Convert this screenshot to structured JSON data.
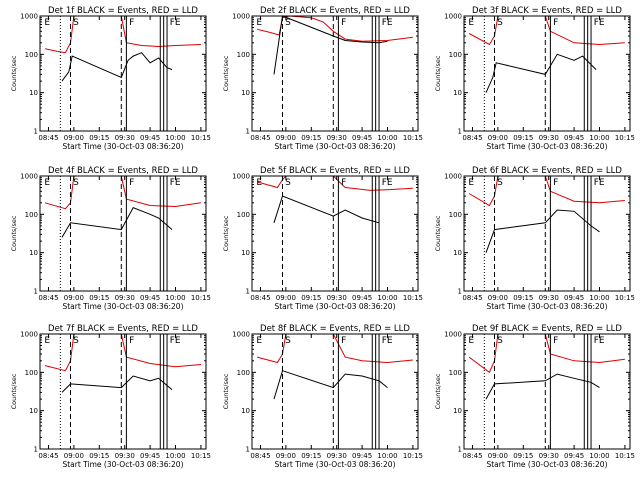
{
  "panels_meta": {
    "yticks": [
      "1",
      "10",
      "100",
      "1000"
    ],
    "xticks": [
      "08:45",
      "09:00",
      "09:15",
      "09:30",
      "09:45",
      "10:00",
      "10:15"
    ]
  },
  "chart_data": [
    {
      "type": "line",
      "title": "Det 1f BLACK = Events, RED = LLD",
      "xlabel": "Start Time (30-Oct-03 08:36:20)",
      "ylabel": "Counts/sec",
      "yscale": "log",
      "ylim": [
        1,
        1000
      ],
      "xlim": [
        "08:40",
        "10:18"
      ],
      "marker_labels": [
        "E",
        "S",
        "F",
        "FE"
      ],
      "markers": [
        {
          "t": "08:52",
          "style": "dotted"
        },
        {
          "t": "08:58",
          "style": "dashed"
        },
        {
          "t": "09:28",
          "style": "dashed"
        },
        {
          "t": "09:31",
          "style": "solid"
        },
        {
          "t": "09:51",
          "style": "solid"
        },
        {
          "t": "09:53",
          "style": "solid"
        },
        {
          "t": "09:55",
          "style": "solid"
        }
      ],
      "series": [
        {
          "name": "RED",
          "color": "#e00000",
          "x": [
            "08:43",
            "08:50",
            "08:55",
            "08:58",
            "09:00",
            "09:28",
            "09:31",
            "09:40",
            "09:50",
            "10:00",
            "10:15"
          ],
          "y": [
            140,
            120,
            110,
            200,
            1000,
            1000,
            200,
            170,
            160,
            170,
            180
          ]
        },
        {
          "name": "BLACK",
          "color": "#000000",
          "x": [
            "08:53",
            "08:57",
            "08:59",
            "09:28",
            "09:32",
            "09:35",
            "09:40",
            "09:45",
            "09:50",
            "09:55",
            "09:58"
          ],
          "y": [
            20,
            35,
            90,
            25,
            70,
            90,
            110,
            60,
            80,
            45,
            40
          ]
        }
      ]
    },
    {
      "type": "line",
      "title": "Det 2f BLACK = Events, RED = LLD",
      "xlabel": "Start Time (30-Oct-03 08:36:20)",
      "ylabel": "Counts/sec",
      "yscale": "log",
      "ylim": [
        1,
        1000
      ],
      "xlim": [
        "08:40",
        "10:18"
      ],
      "marker_labels": [
        "E",
        "S",
        "F",
        "FE"
      ],
      "markers": [
        {
          "t": "08:58",
          "style": "dashed"
        },
        {
          "t": "09:28",
          "style": "dashed"
        },
        {
          "t": "09:31",
          "style": "solid"
        },
        {
          "t": "09:51",
          "style": "solid"
        },
        {
          "t": "09:53",
          "style": "solid"
        },
        {
          "t": "09:55",
          "style": "solid"
        }
      ],
      "series": [
        {
          "name": "RED",
          "color": "#e00000",
          "x": [
            "08:43",
            "08:50",
            "08:56",
            "08:58",
            "09:02",
            "09:15",
            "09:22",
            "09:28",
            "09:35",
            "09:45",
            "10:00",
            "10:15"
          ],
          "y": [
            450,
            380,
            320,
            900,
            1000,
            900,
            700,
            400,
            250,
            220,
            230,
            280
          ]
        },
        {
          "name": "BLACK",
          "color": "#000000",
          "x": [
            "08:53",
            "08:58",
            "09:28",
            "09:35",
            "09:45",
            "09:55",
            "10:00"
          ],
          "y": [
            30,
            1000,
            300,
            230,
            210,
            200,
            220
          ]
        }
      ]
    },
    {
      "type": "line",
      "title": "Det 3f BLACK = Events, RED = LLD",
      "xlabel": "Start Time (30-Oct-03 08:36:20)",
      "ylabel": "Counts/sec",
      "yscale": "log",
      "ylim": [
        1,
        1000
      ],
      "xlim": [
        "08:40",
        "10:18"
      ],
      "marker_labels": [
        "E",
        "S",
        "F",
        "FE"
      ],
      "markers": [
        {
          "t": "08:52",
          "style": "dotted"
        },
        {
          "t": "08:58",
          "style": "dashed"
        },
        {
          "t": "09:28",
          "style": "dashed"
        },
        {
          "t": "09:31",
          "style": "solid"
        },
        {
          "t": "09:51",
          "style": "solid"
        },
        {
          "t": "09:53",
          "style": "solid"
        },
        {
          "t": "09:55",
          "style": "solid"
        }
      ],
      "series": [
        {
          "name": "RED",
          "color": "#e00000",
          "x": [
            "08:43",
            "08:55",
            "08:58",
            "09:00",
            "09:28",
            "09:31",
            "09:45",
            "10:00",
            "10:15"
          ],
          "y": [
            350,
            180,
            300,
            1000,
            1000,
            400,
            200,
            180,
            200
          ]
        },
        {
          "name": "BLACK",
          "color": "#000000",
          "x": [
            "08:53",
            "08:57",
            "08:59",
            "09:28",
            "09:35",
            "09:45",
            "09:50",
            "09:58"
          ],
          "y": [
            10,
            25,
            60,
            30,
            100,
            70,
            90,
            40
          ]
        }
      ]
    },
    {
      "type": "line",
      "title": "Det 4f BLACK = Events, RED = LLD",
      "xlabel": "Start Time (30-Oct-03 08:36:20)",
      "ylabel": "Counts/sec",
      "yscale": "log",
      "ylim": [
        1,
        1000
      ],
      "xlim": [
        "08:40",
        "10:18"
      ],
      "marker_labels": [
        "E",
        "S",
        "F",
        "FE"
      ],
      "markers": [
        {
          "t": "08:52",
          "style": "dotted"
        },
        {
          "t": "08:58",
          "style": "dashed"
        },
        {
          "t": "09:28",
          "style": "dashed"
        },
        {
          "t": "09:31",
          "style": "solid"
        },
        {
          "t": "09:51",
          "style": "solid"
        },
        {
          "t": "09:53",
          "style": "solid"
        },
        {
          "t": "09:55",
          "style": "solid"
        }
      ],
      "series": [
        {
          "name": "RED",
          "color": "#e00000",
          "x": [
            "08:43",
            "08:55",
            "08:58",
            "09:00",
            "09:28",
            "09:31",
            "09:45",
            "10:00",
            "10:15"
          ],
          "y": [
            200,
            140,
            200,
            1000,
            1000,
            250,
            170,
            160,
            200
          ]
        },
        {
          "name": "BLACK",
          "color": "#000000",
          "x": [
            "08:53",
            "08:58",
            "09:28",
            "09:35",
            "09:45",
            "09:50",
            "09:58"
          ],
          "y": [
            25,
            60,
            40,
            150,
            100,
            80,
            40
          ]
        }
      ]
    },
    {
      "type": "line",
      "title": "Det 5f BLACK = Events, RED = LLD",
      "xlabel": "Start Time (30-Oct-03 08:36:20)",
      "ylabel": "Counts/sec",
      "yscale": "log",
      "ylim": [
        1,
        1000
      ],
      "xlim": [
        "08:40",
        "10:18"
      ],
      "marker_labels": [
        "E",
        "S",
        "F",
        "FE"
      ],
      "markers": [
        {
          "t": "08:58",
          "style": "dashed"
        },
        {
          "t": "09:28",
          "style": "dashed"
        },
        {
          "t": "09:31",
          "style": "solid"
        },
        {
          "t": "09:51",
          "style": "solid"
        },
        {
          "t": "09:53",
          "style": "solid"
        },
        {
          "t": "09:55",
          "style": "solid"
        }
      ],
      "series": [
        {
          "name": "RED",
          "color": "#e00000",
          "x": [
            "08:43",
            "08:55",
            "08:58",
            "09:00",
            "09:28",
            "09:35",
            "09:50",
            "10:05",
            "10:15"
          ],
          "y": [
            700,
            500,
            800,
            1000,
            1000,
            500,
            420,
            450,
            480
          ]
        },
        {
          "name": "BLACK",
          "color": "#000000",
          "x": [
            "08:53",
            "08:58",
            "09:28",
            "09:35",
            "09:45",
            "09:55"
          ],
          "y": [
            60,
            300,
            90,
            130,
            80,
            60
          ]
        }
      ]
    },
    {
      "type": "line",
      "title": "Det 6f BLACK = Events, RED = LLD",
      "xlabel": "Start Time (30-Oct-03 08:36:20)",
      "ylabel": "Counts/sec",
      "yscale": "log",
      "ylim": [
        1,
        1000
      ],
      "xlim": [
        "08:40",
        "10:18"
      ],
      "marker_labels": [
        "E",
        "S",
        "F",
        "FE"
      ],
      "markers": [
        {
          "t": "08:52",
          "style": "dotted"
        },
        {
          "t": "08:58",
          "style": "dashed"
        },
        {
          "t": "09:28",
          "style": "dashed"
        },
        {
          "t": "09:31",
          "style": "solid"
        },
        {
          "t": "09:51",
          "style": "solid"
        },
        {
          "t": "09:53",
          "style": "solid"
        },
        {
          "t": "09:55",
          "style": "solid"
        }
      ],
      "series": [
        {
          "name": "RED",
          "color": "#e00000",
          "x": [
            "08:43",
            "08:55",
            "08:58",
            "09:00",
            "09:28",
            "09:31",
            "09:45",
            "10:00",
            "10:15"
          ],
          "y": [
            350,
            170,
            300,
            1000,
            1000,
            400,
            220,
            200,
            230
          ]
        },
        {
          "name": "BLACK",
          "color": "#000000",
          "x": [
            "08:53",
            "08:58",
            "09:28",
            "09:35",
            "09:45",
            "09:55",
            "10:00"
          ],
          "y": [
            10,
            40,
            60,
            130,
            120,
            50,
            35
          ]
        }
      ]
    },
    {
      "type": "line",
      "title": "Det 7f BLACK = Events, RED = LLD",
      "xlabel": "Start Time (30-Oct-03 08:36:20)",
      "ylabel": "Counts/sec",
      "yscale": "log",
      "ylim": [
        1,
        1000
      ],
      "xlim": [
        "08:40",
        "10:18"
      ],
      "marker_labels": [
        "E",
        "S",
        "F",
        "FE"
      ],
      "markers": [
        {
          "t": "08:52",
          "style": "dotted"
        },
        {
          "t": "08:58",
          "style": "dashed"
        },
        {
          "t": "09:28",
          "style": "dashed"
        },
        {
          "t": "09:31",
          "style": "solid"
        },
        {
          "t": "09:51",
          "style": "solid"
        },
        {
          "t": "09:53",
          "style": "solid"
        },
        {
          "t": "09:55",
          "style": "solid"
        }
      ],
      "series": [
        {
          "name": "RED",
          "color": "#e00000",
          "x": [
            "08:43",
            "08:55",
            "08:58",
            "09:00",
            "09:28",
            "09:31",
            "09:45",
            "10:00",
            "10:15"
          ],
          "y": [
            150,
            110,
            200,
            1000,
            1000,
            250,
            170,
            140,
            160
          ]
        },
        {
          "name": "BLACK",
          "color": "#000000",
          "x": [
            "08:53",
            "08:58",
            "09:28",
            "09:35",
            "09:45",
            "09:50",
            "09:58"
          ],
          "y": [
            30,
            50,
            40,
            80,
            60,
            70,
            35
          ]
        }
      ]
    },
    {
      "type": "line",
      "title": "Det 8f BLACK = Events, RED = LLD",
      "xlabel": "Start Time (30-Oct-03 08:36:20)",
      "ylabel": "Counts/sec",
      "yscale": "log",
      "ylim": [
        1,
        1000
      ],
      "xlim": [
        "08:40",
        "10:18"
      ],
      "marker_labels": [
        "E",
        "S",
        "F",
        "FE"
      ],
      "markers": [
        {
          "t": "08:58",
          "style": "dashed"
        },
        {
          "t": "09:28",
          "style": "dashed"
        },
        {
          "t": "09:31",
          "style": "solid"
        },
        {
          "t": "09:51",
          "style": "solid"
        },
        {
          "t": "09:53",
          "style": "solid"
        },
        {
          "t": "09:55",
          "style": "solid"
        }
      ],
      "series": [
        {
          "name": "RED",
          "color": "#e00000",
          "x": [
            "08:43",
            "08:55",
            "08:58",
            "09:00",
            "09:28",
            "09:35",
            "09:45",
            "10:00",
            "10:15"
          ],
          "y": [
            250,
            180,
            300,
            1000,
            1000,
            250,
            200,
            180,
            210
          ]
        },
        {
          "name": "BLACK",
          "color": "#000000",
          "x": [
            "08:53",
            "08:58",
            "09:28",
            "09:35",
            "09:45",
            "09:55",
            "10:00"
          ],
          "y": [
            20,
            110,
            40,
            90,
            80,
            60,
            40
          ]
        }
      ]
    },
    {
      "type": "line",
      "title": "Det 9f BLACK = Events, RED = LLD",
      "xlabel": "Start Time (30-Oct-03 08:36:20)",
      "ylabel": "Counts/sec",
      "yscale": "log",
      "ylim": [
        1,
        1000
      ],
      "xlim": [
        "08:40",
        "10:18"
      ],
      "marker_labels": [
        "E",
        "S",
        "F",
        "FE"
      ],
      "markers": [
        {
          "t": "08:52",
          "style": "dotted"
        },
        {
          "t": "08:58",
          "style": "dashed"
        },
        {
          "t": "09:28",
          "style": "dashed"
        },
        {
          "t": "09:31",
          "style": "solid"
        },
        {
          "t": "09:51",
          "style": "solid"
        },
        {
          "t": "09:53",
          "style": "solid"
        },
        {
          "t": "09:55",
          "style": "solid"
        }
      ],
      "series": [
        {
          "name": "RED",
          "color": "#e00000",
          "x": [
            "08:43",
            "08:55",
            "08:58",
            "09:00",
            "09:28",
            "09:31",
            "09:45",
            "10:00",
            "10:15"
          ],
          "y": [
            250,
            100,
            200,
            1000,
            1000,
            300,
            200,
            180,
            220
          ]
        },
        {
          "name": "BLACK",
          "color": "#000000",
          "x": [
            "08:53",
            "08:58",
            "09:28",
            "09:35",
            "09:45",
            "09:55",
            "10:00"
          ],
          "y": [
            20,
            50,
            60,
            90,
            70,
            55,
            40
          ]
        }
      ]
    }
  ]
}
